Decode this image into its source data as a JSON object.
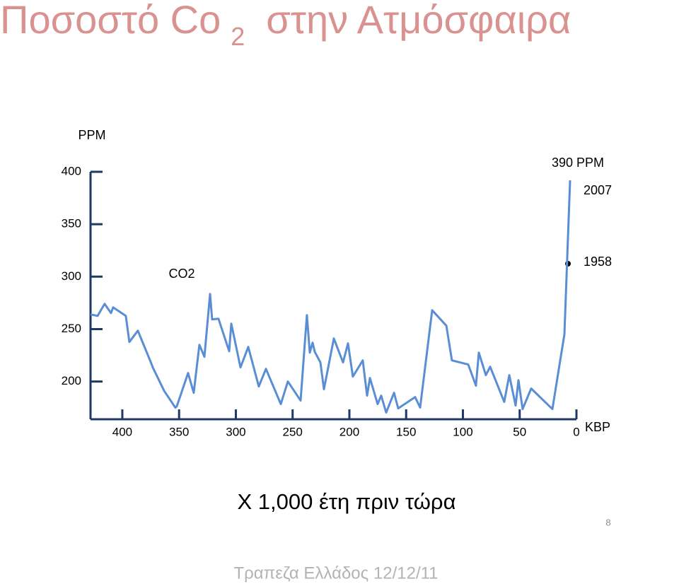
{
  "chart_data": {
    "type": "line",
    "title": "Ποσοστό Co",
    "title_subscript": "2",
    "title_rest": "στην Ατμόσφαιρα",
    "ylabel": "PPM",
    "xlabel": "X 1,000 έτη πριν τώρα",
    "xunit": "KBP",
    "annotations": [
      "CO2",
      "390 PPM",
      "2007",
      "1958"
    ],
    "color": "#5a8ed4",
    "xlim": [
      428,
      0
    ],
    "xticks": [
      400,
      350,
      300,
      250,
      200,
      150,
      100,
      50,
      0
    ],
    "ylim": [
      164,
      400
    ],
    "yticks": [
      200,
      250,
      300,
      350,
      400
    ],
    "x": [
      428.0,
      421.8,
      415.6,
      410.0,
      408.1,
      396.9,
      393.8,
      386.3,
      375.1,
      373.2,
      363.2,
      353.3,
      352.0,
      342.1,
      337.1,
      332.1,
      327.7,
      322.7,
      320.9,
      315.3,
      305.9,
      304.0,
      295.9,
      289.1,
      279.8,
      273.5,
      260.4,
      254.2,
      243.0,
      237.4,
      234.9,
      232.4,
      230.5,
      225.5,
      222.4,
      213.7,
      205.6,
      201.2,
      196.9,
      188.2,
      184.4,
      181.9,
      175.1,
      172.0,
      167.6,
      160.7,
      157.0,
      142.1,
      137.7,
      127.1,
      114.6,
      109.7,
      95.3,
      88.5,
      86.0,
      79.8,
      76.0,
      63.6,
      59.2,
      53.6,
      51.1,
      47.4,
      39.9,
      21.2,
      10.6,
      5.6
    ],
    "values": [
      264.0,
      262.6,
      274.1,
      265.3,
      270.7,
      262.6,
      237.7,
      248.5,
      218.9,
      213.5,
      191.2,
      175.1,
      176.4,
      208.1,
      189.2,
      235.0,
      223.6,
      283.5,
      259.3,
      259.9,
      228.9,
      255.2,
      213.5,
      233.0,
      195.3,
      212.1,
      178.5,
      200.0,
      181.8,
      263.3,
      227.6,
      237.0,
      228.3,
      218.2,
      192.6,
      241.1,
      218.2,
      236.4,
      204.7,
      220.2,
      186.5,
      203.4,
      178.5,
      186.5,
      170.4,
      189.2,
      174.4,
      185.2,
      175.1,
      268.0,
      253.2,
      220.2,
      216.2,
      196.0,
      227.6,
      206.1,
      214.1,
      180.5,
      206.1,
      177.1,
      201.3,
      173.7,
      193.3,
      173.7,
      245.1,
      391.9
    ]
  },
  "slide": {
    "page_number": "8",
    "footer": "Τραπεζα Ελλάδος 12/12/11"
  }
}
